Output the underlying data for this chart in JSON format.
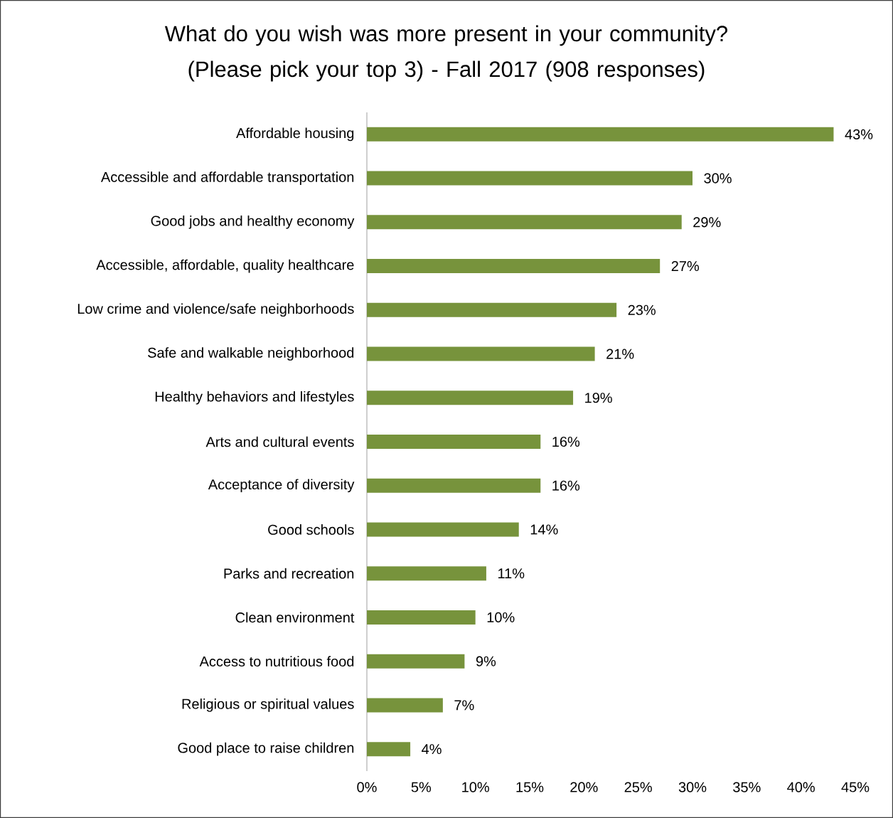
{
  "chart_data": {
    "type": "bar",
    "orientation": "horizontal",
    "title": "What do you wish was more present in your community?\n(Please pick your top 3) - Fall 2017 (908 responses)",
    "categories": [
      "Affordable housing",
      "Accessible and affordable transportation",
      "Good jobs and healthy economy",
      "Accessible, affordable, quality healthcare",
      "Low crime and violence/safe neighborhoods",
      "Safe and walkable neighborhood",
      "Healthy behaviors and lifestyles",
      "Arts and cultural events",
      "Acceptance of diversity",
      "Good schools",
      "Parks and recreation",
      "Clean environment",
      "Access to nutritious food",
      "Religious or spiritual values",
      "Good place to raise children"
    ],
    "values": [
      43,
      30,
      29,
      27,
      23,
      21,
      19,
      16,
      16,
      14,
      11,
      10,
      9,
      7,
      4
    ],
    "value_labels": [
      "43%",
      "30%",
      "29%",
      "27%",
      "23%",
      "21%",
      "19%",
      "16%",
      "16%",
      "14%",
      "11%",
      "10%",
      "9%",
      "7%",
      "4%"
    ],
    "color": "#77933c",
    "xlim": [
      0,
      45
    ],
    "xticks": [
      {
        "value": 0,
        "label": "0%"
      },
      {
        "value": 5,
        "label": "5%"
      },
      {
        "value": 10,
        "label": "10%"
      },
      {
        "value": 15,
        "label": "15%"
      },
      {
        "value": 20,
        "label": "20%"
      },
      {
        "value": 25,
        "label": "25%"
      },
      {
        "value": 30,
        "label": "30%"
      },
      {
        "value": 35,
        "label": "35%"
      },
      {
        "value": 40,
        "label": "40%"
      },
      {
        "value": 45,
        "label": "45%"
      }
    ]
  }
}
